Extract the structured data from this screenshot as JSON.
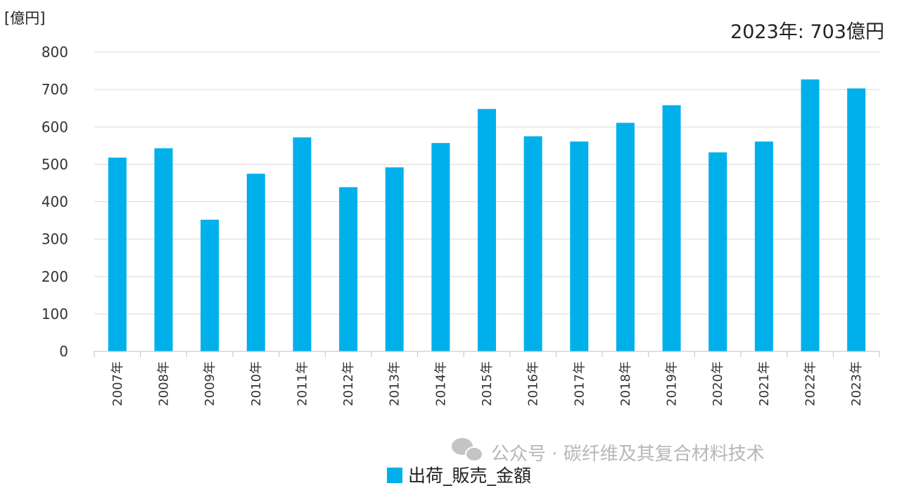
{
  "chart_data": {
    "type": "bar",
    "unit_label": "[億円]",
    "annotation": "2023年: 703億円",
    "categories": [
      "2007年",
      "2008年",
      "2009年",
      "2010年",
      "2011年",
      "2012年",
      "2013年",
      "2014年",
      "2015年",
      "2016年",
      "2017年",
      "2018年",
      "2019年",
      "2020年",
      "2021年",
      "2022年",
      "2023年"
    ],
    "series": [
      {
        "name": "出荷_販売_金額",
        "color": "#00b0eb",
        "values": [
          518,
          543,
          352,
          475,
          572,
          439,
          492,
          557,
          648,
          575,
          561,
          611,
          658,
          532,
          561,
          727,
          703
        ]
      }
    ],
    "ylim": [
      0,
      800
    ],
    "yticks": [
      0,
      100,
      200,
      300,
      400,
      500,
      600,
      700,
      800
    ],
    "grid": true,
    "legend": "bottom-center"
  },
  "watermark": {
    "text": "公众号 · 碳纤维及其复合材料技术",
    "icon": "wechat-icon"
  }
}
